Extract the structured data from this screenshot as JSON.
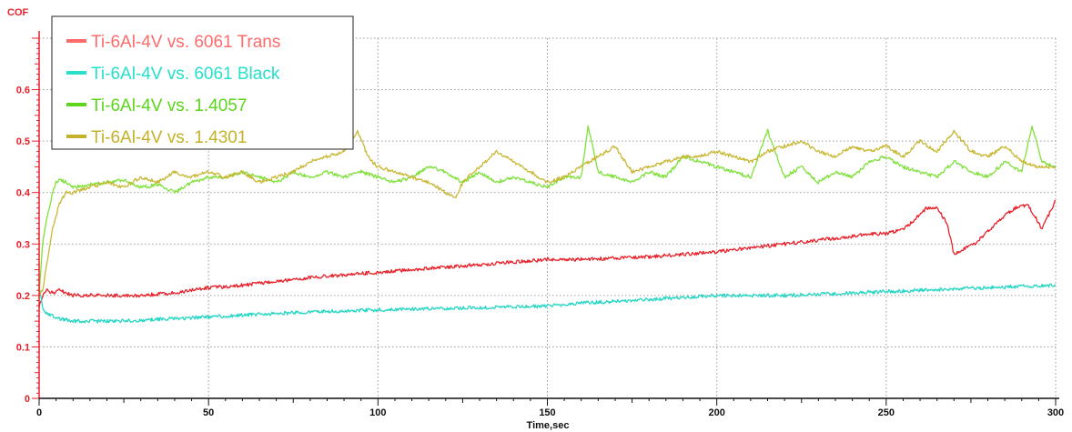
{
  "chart_data": {
    "type": "line",
    "ylabel": "COF",
    "xlabel": "Time,sec",
    "xlim": [
      0,
      300
    ],
    "ylim": [
      0,
      0.7
    ],
    "x_ticks": [
      0,
      50,
      100,
      150,
      200,
      250,
      300
    ],
    "y_ticks": [
      0,
      0.1,
      0.2,
      0.3,
      0.4,
      0.5,
      0.6
    ],
    "grid": true,
    "legend_position": "top-left",
    "colors": {
      "y_axis": "#e8212a",
      "x_axis": "#111111",
      "grid": "#9a9a9a"
    },
    "series": [
      {
        "name": "Ti-6Al-4V vs. 6061 Trans",
        "color": "#e8212a",
        "legend_color": "#ff6b6b",
        "x": [
          0,
          1,
          2,
          4,
          6,
          10,
          20,
          30,
          40,
          50,
          60,
          80,
          100,
          120,
          140,
          150,
          160,
          180,
          200,
          220,
          240,
          245,
          250,
          255,
          258,
          262,
          265,
          268,
          270,
          273,
          276,
          280,
          284,
          288,
          292,
          296,
          300
        ],
        "y": [
          0.18,
          0.2,
          0.21,
          0.205,
          0.21,
          0.2,
          0.2,
          0.2,
          0.205,
          0.215,
          0.22,
          0.235,
          0.245,
          0.255,
          0.265,
          0.27,
          0.27,
          0.275,
          0.285,
          0.3,
          0.315,
          0.32,
          0.32,
          0.33,
          0.345,
          0.37,
          0.37,
          0.34,
          0.28,
          0.29,
          0.3,
          0.325,
          0.35,
          0.37,
          0.375,
          0.33,
          0.385
        ]
      },
      {
        "name": "Ti-6Al-4V vs. 6061 Black",
        "color": "#26d6c4",
        "legend_color": "#26e0cc",
        "x": [
          0,
          1,
          2,
          4,
          6,
          10,
          20,
          30,
          40,
          50,
          60,
          80,
          100,
          120,
          140,
          150,
          160,
          180,
          200,
          220,
          240,
          260,
          280,
          300
        ],
        "y": [
          0.22,
          0.18,
          0.165,
          0.16,
          0.155,
          0.15,
          0.15,
          0.152,
          0.155,
          0.158,
          0.162,
          0.168,
          0.172,
          0.175,
          0.178,
          0.18,
          0.185,
          0.192,
          0.2,
          0.2,
          0.205,
          0.21,
          0.215,
          0.22
        ]
      },
      {
        "name": "Ti-6Al-4V vs. 1.4057",
        "color": "#7fe13a",
        "legend_color": "#5cd61a",
        "x": [
          0,
          1,
          2,
          4,
          5,
          6,
          8,
          10,
          15,
          20,
          25,
          30,
          35,
          40,
          45,
          50,
          55,
          60,
          65,
          70,
          75,
          80,
          85,
          90,
          95,
          100,
          105,
          110,
          115,
          120,
          125,
          130,
          135,
          140,
          145,
          150,
          155,
          160,
          162,
          165,
          170,
          175,
          180,
          185,
          190,
          195,
          200,
          205,
          210,
          215,
          220,
          225,
          230,
          235,
          240,
          245,
          250,
          255,
          260,
          265,
          270,
          275,
          280,
          285,
          290,
          293,
          296,
          300
        ],
        "y": [
          0.2,
          0.3,
          0.34,
          0.4,
          0.42,
          0.425,
          0.42,
          0.41,
          0.415,
          0.42,
          0.425,
          0.41,
          0.415,
          0.4,
          0.42,
          0.43,
          0.43,
          0.44,
          0.43,
          0.42,
          0.44,
          0.43,
          0.44,
          0.43,
          0.44,
          0.43,
          0.42,
          0.43,
          0.45,
          0.44,
          0.42,
          0.44,
          0.42,
          0.43,
          0.42,
          0.41,
          0.43,
          0.43,
          0.53,
          0.44,
          0.43,
          0.42,
          0.44,
          0.43,
          0.47,
          0.46,
          0.45,
          0.44,
          0.43,
          0.52,
          0.43,
          0.45,
          0.42,
          0.44,
          0.43,
          0.46,
          0.47,
          0.45,
          0.44,
          0.43,
          0.46,
          0.44,
          0.43,
          0.46,
          0.44,
          0.53,
          0.46,
          0.45
        ]
      },
      {
        "name": "Ti-6Al-4V vs. 1.4301",
        "color": "#c8b836",
        "legend_color": "#c4b228",
        "x": [
          0,
          1,
          2,
          4,
          6,
          8,
          10,
          15,
          20,
          25,
          30,
          35,
          40,
          45,
          50,
          55,
          60,
          65,
          70,
          75,
          80,
          85,
          90,
          94,
          97,
          100,
          105,
          110,
          115,
          120,
          123,
          125,
          130,
          135,
          140,
          145,
          150,
          155,
          160,
          165,
          170,
          175,
          180,
          185,
          190,
          195,
          200,
          205,
          210,
          215,
          220,
          225,
          230,
          235,
          240,
          245,
          250,
          255,
          260,
          265,
          270,
          275,
          280,
          285,
          290,
          295,
          300
        ],
        "y": [
          0.2,
          0.21,
          0.25,
          0.33,
          0.38,
          0.4,
          0.4,
          0.41,
          0.42,
          0.41,
          0.43,
          0.42,
          0.44,
          0.43,
          0.44,
          0.43,
          0.44,
          0.42,
          0.43,
          0.44,
          0.46,
          0.47,
          0.48,
          0.52,
          0.47,
          0.45,
          0.44,
          0.43,
          0.42,
          0.4,
          0.39,
          0.42,
          0.45,
          0.48,
          0.46,
          0.44,
          0.42,
          0.43,
          0.45,
          0.47,
          0.49,
          0.44,
          0.45,
          0.46,
          0.47,
          0.47,
          0.48,
          0.47,
          0.46,
          0.48,
          0.49,
          0.5,
          0.48,
          0.47,
          0.49,
          0.48,
          0.49,
          0.47,
          0.5,
          0.48,
          0.52,
          0.48,
          0.47,
          0.49,
          0.46,
          0.45,
          0.45
        ]
      }
    ]
  }
}
